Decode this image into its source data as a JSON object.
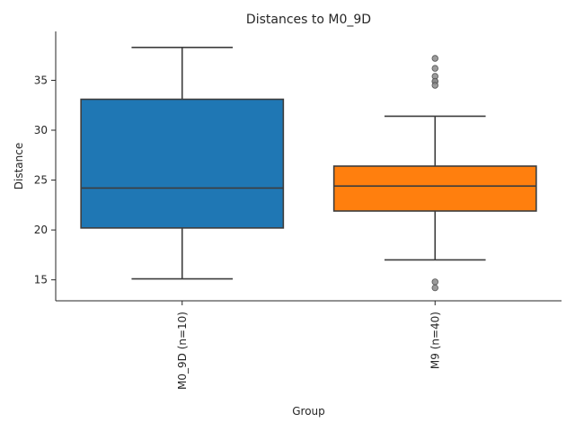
{
  "chart_data": {
    "type": "box",
    "title": "Distances to M0_9D",
    "xlabel": "Group",
    "ylabel": "Distance",
    "ylim": [
      12.9,
      39.9
    ],
    "yticks": [
      15,
      20,
      25,
      30,
      35
    ],
    "grid": false,
    "groups": [
      {
        "label": "M0_9D (n=10)",
        "color": "#1f77b4",
        "whisker_low": 15.1,
        "q1": 20.2,
        "median": 24.2,
        "q3": 33.1,
        "whisker_high": 38.3,
        "fliers": []
      },
      {
        "label": "M9 (n=40)",
        "color": "#ff7f0e",
        "whisker_low": 17.0,
        "q1": 21.9,
        "median": 24.4,
        "q3": 26.4,
        "whisker_high": 31.4,
        "fliers": [
          37.2,
          36.2,
          35.4,
          34.9,
          34.9,
          34.5,
          14.8,
          14.2
        ]
      }
    ]
  }
}
